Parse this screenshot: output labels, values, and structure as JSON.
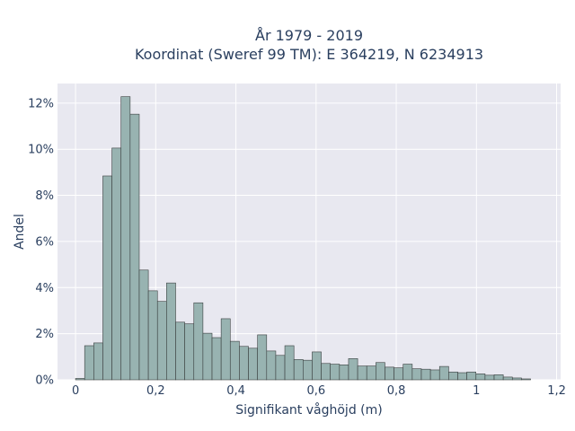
{
  "chart_data": {
    "type": "bar",
    "title_line1": "År 1979 - 2019",
    "title_line2": "Koordinat (Sweref 99 TM): E 364219, N 6234913",
    "xlabel": "Signifikant våghöjd (m)",
    "ylabel": "Andel",
    "xlim": [
      -0.045,
      1.21
    ],
    "ylim": [
      0,
      0.1285
    ],
    "x_ticks": [
      {
        "value": 0,
        "label": "0"
      },
      {
        "value": 0.2,
        "label": "0,2"
      },
      {
        "value": 0.4,
        "label": "0,4"
      },
      {
        "value": 0.6,
        "label": "0,6"
      },
      {
        "value": 0.8,
        "label": "0,8"
      },
      {
        "value": 1.0,
        "label": "1"
      },
      {
        "value": 1.2,
        "label": "1,2"
      }
    ],
    "y_ticks": [
      {
        "value": 0,
        "label": "0%"
      },
      {
        "value": 0.02,
        "label": "2%"
      },
      {
        "value": 0.04,
        "label": "4%"
      },
      {
        "value": 0.06,
        "label": "6%"
      },
      {
        "value": 0.08,
        "label": "8%"
      },
      {
        "value": 0.1,
        "label": "10%"
      },
      {
        "value": 0.12,
        "label": "12%"
      }
    ],
    "bin_width": 0.0227,
    "bin_start": 0.0,
    "values": [
      0.0006,
      0.0148,
      0.016,
      0.0884,
      0.1005,
      0.1228,
      0.1152,
      0.0476,
      0.0386,
      0.034,
      0.042,
      0.025,
      0.0243,
      0.0334,
      0.0202,
      0.0183,
      0.0265,
      0.0167,
      0.0145,
      0.0137,
      0.0195,
      0.0125,
      0.0106,
      0.0148,
      0.0088,
      0.0085,
      0.0121,
      0.0071,
      0.0068,
      0.0065,
      0.0092,
      0.006,
      0.006,
      0.0075,
      0.0055,
      0.0052,
      0.0068,
      0.0048,
      0.0046,
      0.0043,
      0.0058,
      0.0034,
      0.0031,
      0.0034,
      0.0026,
      0.002,
      0.0022,
      0.0012,
      0.0008,
      0.0004
    ],
    "grid": true,
    "colors": {
      "bar_fill": "#98b3b1",
      "bar_stroke": "#3a3f3f",
      "plot_bg": "#e8e8f0",
      "grid": "#ffffff",
      "text": "#2a3f5f"
    }
  }
}
